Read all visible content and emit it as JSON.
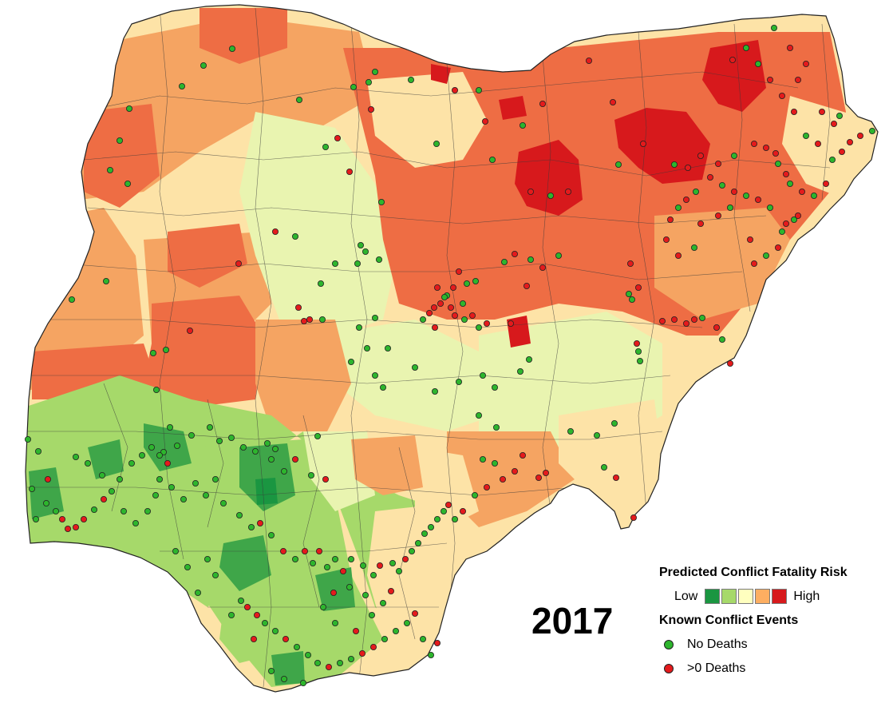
{
  "year": "2017",
  "legend": {
    "risk_title": "Predicted Conflict Fatality Risk",
    "low_label": "Low",
    "high_label": "High",
    "risk_colors": [
      "#1a9641",
      "#a6d96a",
      "#ffffbf",
      "#fdae61",
      "#d7191c"
    ],
    "events_title": "Known Conflict Events",
    "no_deaths_label": "No Deaths",
    "deaths_label": ">0 Deaths",
    "no_deaths_color": "#2db52d",
    "deaths_color": "#e41a1c"
  },
  "map": {
    "region_colors": {
      "very_high": "#d7191c",
      "high": "#ee6d44",
      "mid_high": "#f5a462",
      "neutral": "#fde3a7",
      "mid_low": "#e9f4b0",
      "low": "#a6d96a",
      "very_low": "#3fa649"
    }
  }
}
